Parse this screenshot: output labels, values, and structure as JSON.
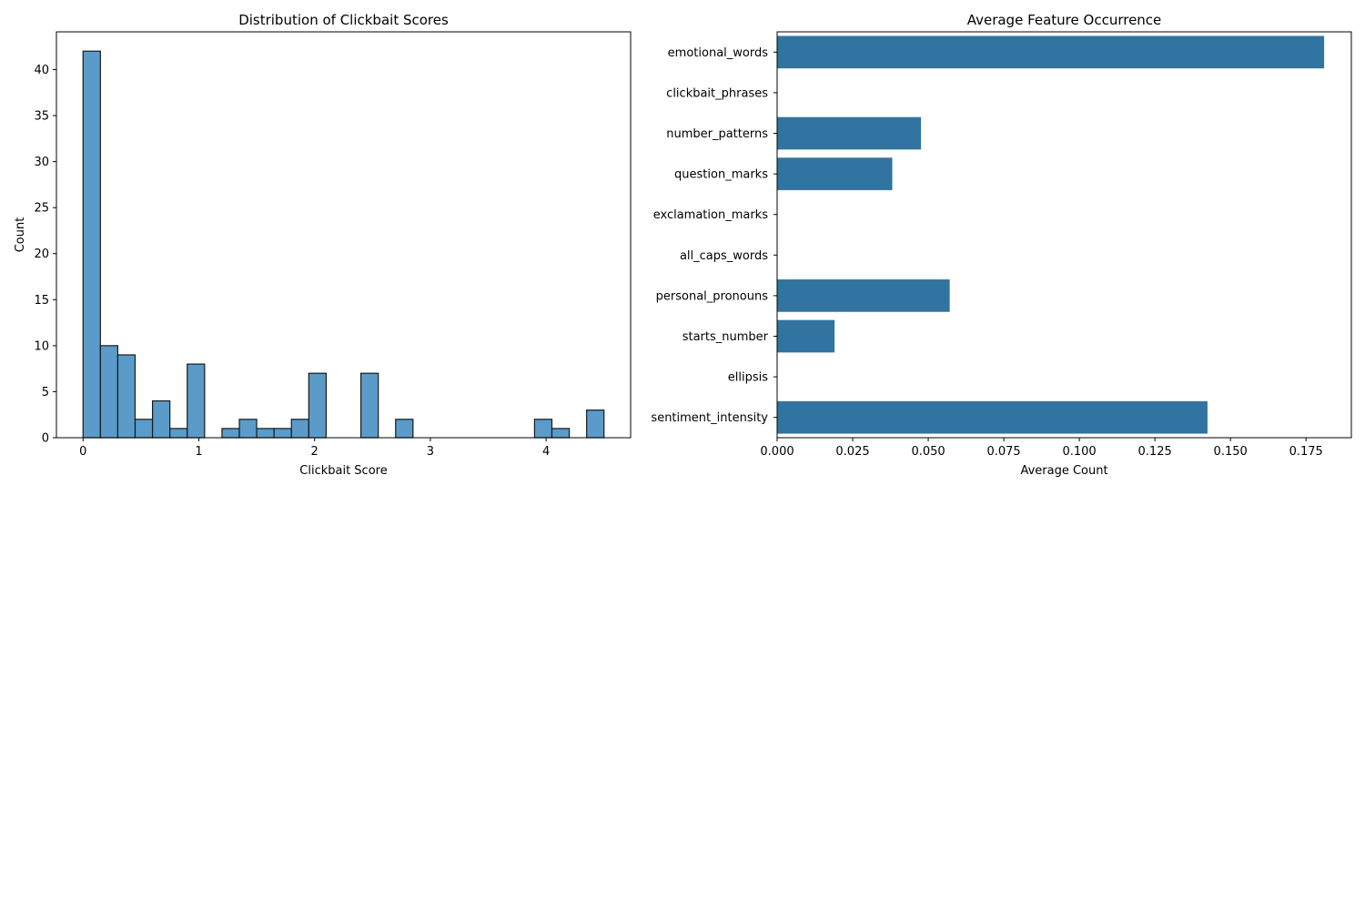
{
  "chart_data": [
    {
      "type": "bar",
      "subtype": "histogram",
      "title": "Distribution of Clickbait Scores",
      "xlabel": "Clickbait Score",
      "ylabel": "Count",
      "xlim": [
        -0.23,
        4.73
      ],
      "ylim": [
        0,
        44.1
      ],
      "xticks": [
        0,
        1,
        2,
        3,
        4
      ],
      "yticks": [
        0,
        5,
        10,
        15,
        20,
        25,
        30,
        35,
        40
      ],
      "bin_edges": [
        0,
        0.15,
        0.3,
        0.45,
        0.6,
        0.75,
        0.9,
        1.05,
        1.2,
        1.35,
        1.5,
        1.65,
        1.8,
        1.95,
        2.1,
        2.25,
        2.4,
        2.55,
        2.7,
        2.85,
        3.0,
        3.15,
        3.3,
        3.45,
        3.6,
        3.75,
        3.9,
        4.05,
        4.2,
        4.35,
        4.5
      ],
      "counts": [
        42,
        10,
        9,
        2,
        4,
        1,
        8,
        0,
        1,
        2,
        1,
        1,
        2,
        7,
        0,
        0,
        7,
        0,
        2,
        0,
        0,
        0,
        0,
        0,
        0,
        0,
        2,
        1,
        0,
        3
      ],
      "grid": false,
      "colors": {
        "bar": "#5a9bc9",
        "edge": "#1a1a1a"
      }
    },
    {
      "type": "bar",
      "orientation": "horizontal",
      "title": "Average Feature Occurrence",
      "xlabel": "Average Count",
      "ylabel": "",
      "xlim": [
        0,
        0.19
      ],
      "xticks": [
        0.0,
        0.025,
        0.05,
        0.075,
        0.1,
        0.125,
        0.15,
        0.175
      ],
      "xtick_labels": [
        "0.000",
        "0.025",
        "0.050",
        "0.075",
        "0.100",
        "0.125",
        "0.150",
        "0.175"
      ],
      "categories": [
        "emotional_words",
        "clickbait_phrases",
        "number_patterns",
        "question_marks",
        "exclamation_marks",
        "all_caps_words",
        "personal_pronouns",
        "starts_number",
        "ellipsis",
        "sentiment_intensity"
      ],
      "values": [
        0.181,
        0.0,
        0.0476,
        0.0381,
        0.0,
        0.0,
        0.0571,
        0.019,
        0.0,
        0.1424
      ],
      "grid": false,
      "colors": {
        "bar": "#3274a1"
      }
    }
  ]
}
